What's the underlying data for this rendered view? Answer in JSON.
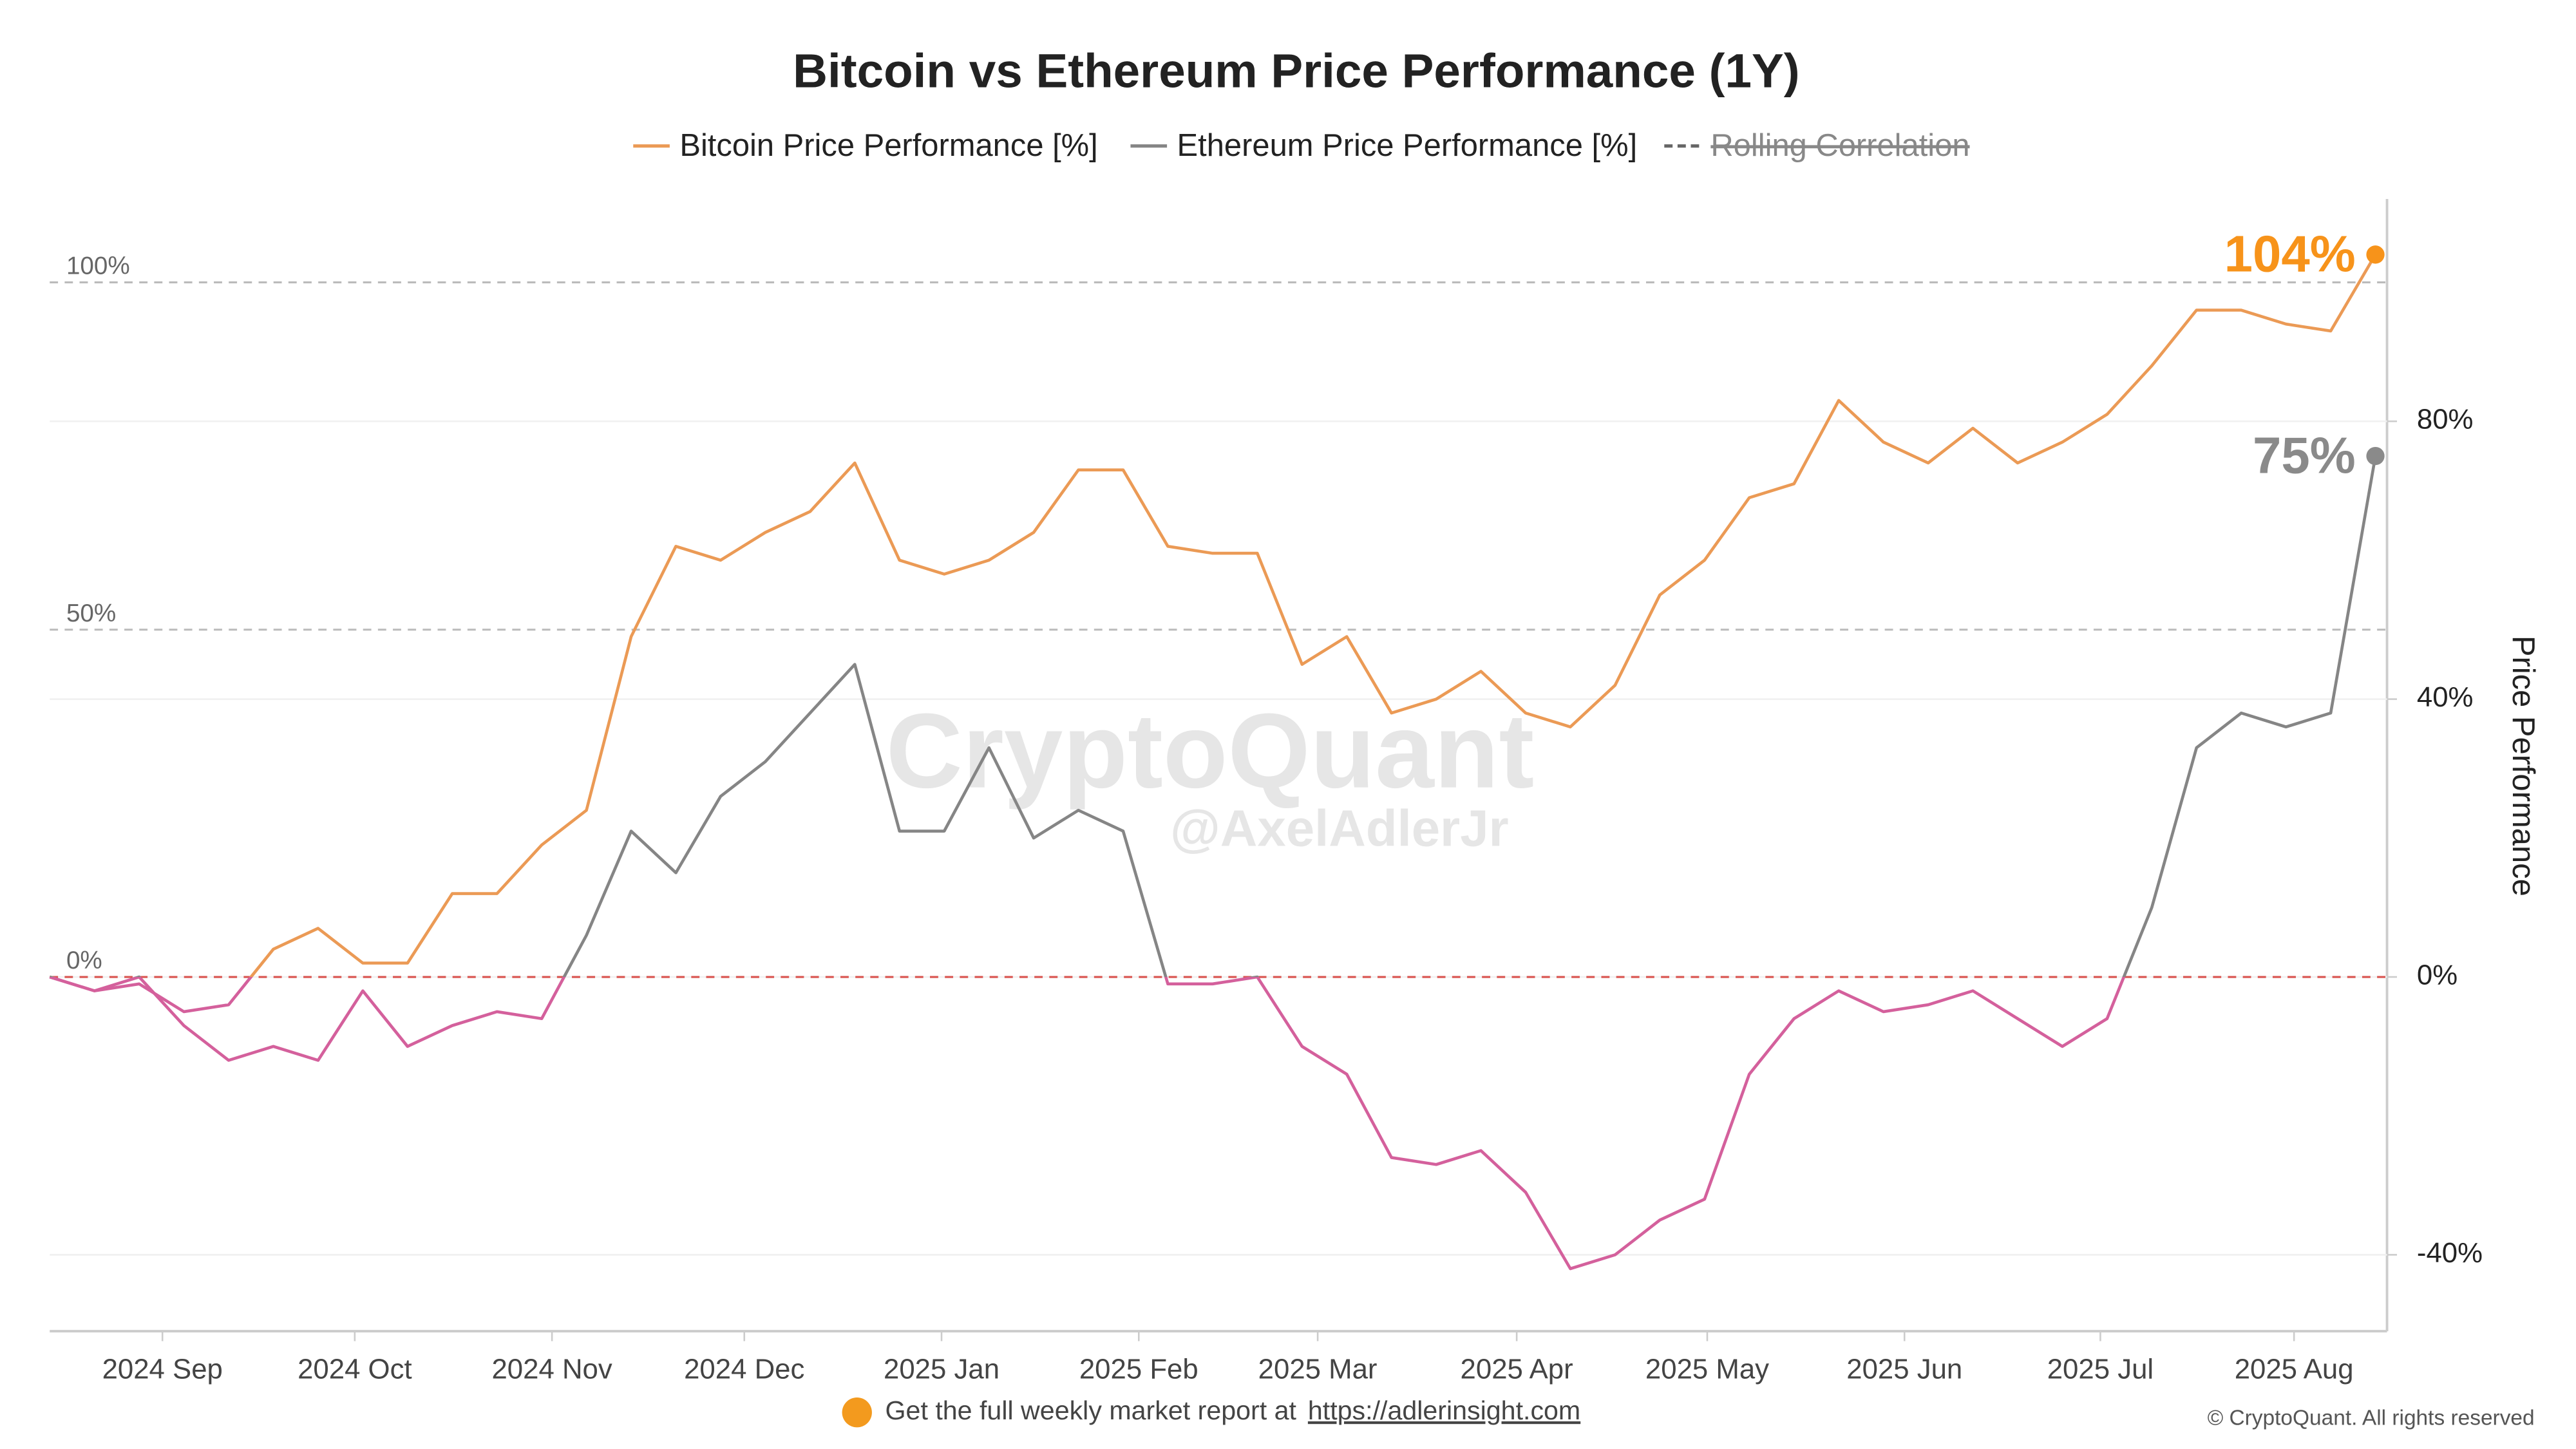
{
  "chart_data": {
    "type": "line",
    "title": "Bitcoin vs Ethereum Price Performance (1Y)",
    "y_label": "Price Performance",
    "watermark": "CryptoQuant",
    "watermark_author": "@AxelAdlerJr",
    "footer_text": "Get the full weekly market report at",
    "footer_link": "https://adlerinsight.com",
    "copyright": "© CryptoQuant. All rights reserved",
    "categories": [
      null,
      null,
      null,
      null,
      null,
      null,
      null,
      null,
      null,
      null,
      null,
      null,
      null,
      null,
      null,
      null,
      null,
      null,
      null,
      null,
      null,
      null,
      null,
      null,
      null,
      null,
      null,
      null,
      null,
      null,
      null,
      null,
      null,
      null,
      null,
      null,
      null,
      null,
      null,
      null,
      null,
      null,
      null,
      null,
      null,
      null,
      null,
      null,
      null,
      null,
      null,
      null,
      null
    ],
    "xlim": [
      0,
      52
    ],
    "xticks": [
      {
        "value": 2.52,
        "label": "2024 Sep"
      },
      {
        "value": 6.82,
        "label": "2024 Oct"
      },
      {
        "value": 11.23,
        "label": "2024 Nov"
      },
      {
        "value": 15.53,
        "label": "2024 Dec"
      },
      {
        "value": 19.94,
        "label": "2025 Jan"
      },
      {
        "value": 24.35,
        "label": "2025 Feb"
      },
      {
        "value": 28.35,
        "label": "2025 Mar"
      },
      {
        "value": 32.8,
        "label": "2025 Apr"
      },
      {
        "value": 37.06,
        "label": "2025 May"
      },
      {
        "value": 41.47,
        "label": "2025 Jun"
      },
      {
        "value": 45.85,
        "label": "2025 Jul"
      },
      {
        "value": 50.18,
        "label": "2025 Aug"
      }
    ],
    "ylim": [
      -51,
      112
    ],
    "yticks": [
      {
        "value": -40,
        "label": "-40%"
      },
      {
        "value": 0,
        "label": "0%"
      },
      {
        "value": 40,
        "label": "40%"
      },
      {
        "value": 80,
        "label": "80%"
      }
    ],
    "y2lim": [
      -51,
      112
    ],
    "y2ticks": [
      {
        "value": 0,
        "label": "0%"
      },
      {
        "value": 50,
        "label": "50%"
      },
      {
        "value": 100,
        "label": "100%"
      }
    ],
    "grid": true,
    "negative_color": "#d4609c",
    "zero_line_color": "#d9534f",
    "legend": "top",
    "series": [
      {
        "name": "Bitcoin Price Performance [%]",
        "color": "#eb9a55",
        "end_label": "104%",
        "end_label_color": "#f7931a",
        "values": [
          0,
          -2,
          -1,
          -5,
          -4,
          4,
          7,
          2,
          2,
          12,
          12,
          19,
          24,
          49,
          62,
          60,
          64,
          67,
          74,
          60,
          58,
          60,
          64,
          73,
          73,
          62,
          61,
          61,
          45,
          49,
          38,
          40,
          44,
          38,
          36,
          42,
          55,
          60,
          69,
          71,
          83,
          77,
          74,
          79,
          74,
          77,
          81,
          88,
          96,
          96,
          94,
          93,
          104
        ]
      },
      {
        "name": "Ethereum Price Performance [%]",
        "color": "#858585",
        "end_label": "75%",
        "end_label_color": "#8a8a8a",
        "values": [
          0,
          -2,
          0,
          -7,
          -12,
          -10,
          -12,
          -2,
          -10,
          -7,
          -5,
          -6,
          6,
          21,
          15,
          26,
          31,
          38,
          45,
          21,
          21,
          33,
          20,
          24,
          21,
          -1,
          -1,
          0,
          -10,
          -14,
          -26,
          -27,
          -25,
          -31,
          -42,
          -40,
          -35,
          -32,
          -14,
          -6,
          -2,
          -5,
          -4,
          -2,
          -6,
          -10,
          -6,
          10,
          33,
          38,
          36,
          38,
          75
        ]
      },
      {
        "name": "Rolling Correlation",
        "color": "#666666",
        "axis": "y2",
        "dashed": true,
        "hidden": true,
        "values": [
          null,
          null,
          null,
          null,
          null,
          null,
          null,
          null,
          null,
          null,
          null,
          null,
          null,
          null,
          null,
          null,
          null,
          null,
          null,
          null,
          null,
          null,
          null,
          null,
          null,
          null,
          null,
          null,
          null,
          null,
          null,
          null,
          null,
          null,
          null,
          null,
          null,
          null,
          null,
          null,
          null,
          null,
          null,
          null,
          null,
          null,
          null,
          null,
          null,
          null,
          null,
          null,
          null
        ]
      }
    ]
  }
}
